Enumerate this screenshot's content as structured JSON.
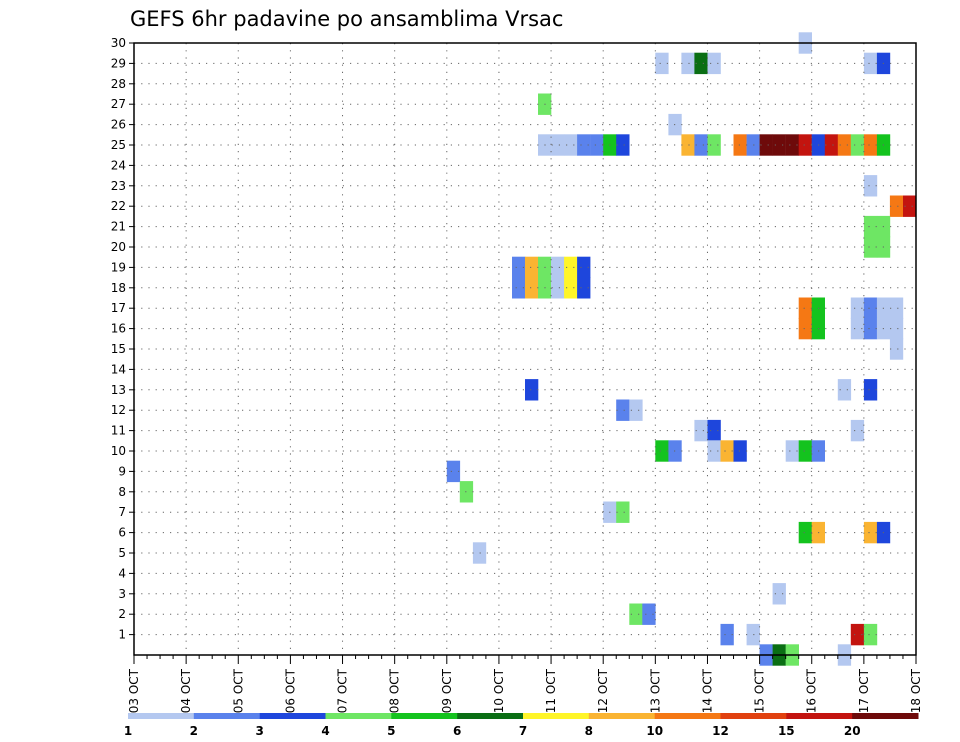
{
  "chart_data": {
    "type": "heatmap",
    "title": "GEFS 6hr padavine po ansamblima Vrsac",
    "x_tick_labels": [
      "03 OCT",
      "04 OCT",
      "05 OCT",
      "06 OCT",
      "07 OCT",
      "08 OCT",
      "09 OCT",
      "10 OCT",
      "11 OCT",
      "12 OCT",
      "13 OCT",
      "14 OCT",
      "15 OCT",
      "16 OCT",
      "17 OCT",
      "18 OCT"
    ],
    "y_tick_labels": [
      "1",
      "2",
      "3",
      "4",
      "5",
      "6",
      "7",
      "8",
      "9",
      "10",
      "11",
      "12",
      "13",
      "14",
      "15",
      "16",
      "17",
      "18",
      "19",
      "20",
      "21",
      "22",
      "23",
      "24",
      "25",
      "26",
      "27",
      "28",
      "29",
      "30"
    ],
    "x_unit": "6-hour step from 03 OCT 00z",
    "xlim": [
      0,
      60
    ],
    "ylim": [
      0,
      30
    ],
    "grid": true,
    "colorbar": {
      "labels": [
        "1",
        "2",
        "3",
        "4",
        "5",
        "6",
        "7",
        "8",
        "10",
        "12",
        "15",
        "20"
      ],
      "colors": [
        "#b4c8f0",
        "#5a82ec",
        "#1e46dc",
        "#6ee664",
        "#14c31e",
        "#0a6e14",
        "#fff528",
        "#fab432",
        "#f57814",
        "#e1410f",
        "#c3140f",
        "#6e0a0a"
      ]
    },
    "cells": [
      {
        "member": 30,
        "t": 51,
        "v": 1
      },
      {
        "member": 29,
        "t": 40,
        "v": 1
      },
      {
        "member": 29,
        "t": 42,
        "v": 1
      },
      {
        "member": 29,
        "t": 43,
        "v": 6
      },
      {
        "member": 29,
        "t": 44,
        "v": 1
      },
      {
        "member": 29,
        "t": 56,
        "v": 1
      },
      {
        "member": 29,
        "t": 57,
        "v": 3
      },
      {
        "member": 27,
        "t": 31,
        "v": 4
      },
      {
        "member": 26,
        "t": 41,
        "v": 1
      },
      {
        "member": 25,
        "t": 31,
        "v": 1
      },
      {
        "member": 25,
        "t": 32,
        "v": 1
      },
      {
        "member": 25,
        "t": 33,
        "v": 1
      },
      {
        "member": 25,
        "t": 34,
        "v": 2
      },
      {
        "member": 25,
        "t": 35,
        "v": 2
      },
      {
        "member": 25,
        "t": 36,
        "v": 5
      },
      {
        "member": 25,
        "t": 37,
        "v": 3
      },
      {
        "member": 25,
        "t": 42,
        "v": 8
      },
      {
        "member": 25,
        "t": 43,
        "v": 2
      },
      {
        "member": 25,
        "t": 44,
        "v": 4
      },
      {
        "member": 25,
        "t": 46,
        "v": 10
      },
      {
        "member": 25,
        "t": 47,
        "v": 2
      },
      {
        "member": 25,
        "t": 48,
        "v": 20
      },
      {
        "member": 25,
        "t": 49,
        "v": 20
      },
      {
        "member": 25,
        "t": 50,
        "v": 20
      },
      {
        "member": 25,
        "t": 51,
        "v": 15
      },
      {
        "member": 25,
        "t": 52,
        "v": 3
      },
      {
        "member": 25,
        "t": 53,
        "v": 15
      },
      {
        "member": 25,
        "t": 54,
        "v": 10
      },
      {
        "member": 25,
        "t": 55,
        "v": 4
      },
      {
        "member": 25,
        "t": 56,
        "v": 10
      },
      {
        "member": 25,
        "t": 57,
        "v": 5
      },
      {
        "member": 23,
        "t": 56,
        "v": 1
      },
      {
        "member": 22,
        "t": 58,
        "v": 10
      },
      {
        "member": 22,
        "t": 59,
        "v": 15
      },
      {
        "member": 21,
        "t": 56,
        "v": 4
      },
      {
        "member": 21,
        "t": 57,
        "v": 4
      },
      {
        "member": 20,
        "t": 56,
        "v": 4
      },
      {
        "member": 20,
        "t": 57,
        "v": 4
      },
      {
        "member": 19,
        "t": 29,
        "v": 2
      },
      {
        "member": 19,
        "t": 30,
        "v": 8
      },
      {
        "member": 19,
        "t": 31,
        "v": 4
      },
      {
        "member": 19,
        "t": 32,
        "v": 1
      },
      {
        "member": 19,
        "t": 33,
        "v": 7
      },
      {
        "member": 19,
        "t": 34,
        "v": 3
      },
      {
        "member": 18,
        "t": 29,
        "v": 2
      },
      {
        "member": 18,
        "t": 30,
        "v": 8
      },
      {
        "member": 18,
        "t": 31,
        "v": 4
      },
      {
        "member": 18,
        "t": 32,
        "v": 1
      },
      {
        "member": 18,
        "t": 33,
        "v": 7
      },
      {
        "member": 18,
        "t": 34,
        "v": 3
      },
      {
        "member": 17,
        "t": 51,
        "v": 10
      },
      {
        "member": 17,
        "t": 52,
        "v": 5
      },
      {
        "member": 17,
        "t": 55,
        "v": 1
      },
      {
        "member": 17,
        "t": 56,
        "v": 2
      },
      {
        "member": 17,
        "t": 57,
        "v": 1
      },
      {
        "member": 17,
        "t": 58,
        "v": 1
      },
      {
        "member": 16,
        "t": 51,
        "v": 10
      },
      {
        "member": 16,
        "t": 52,
        "v": 5
      },
      {
        "member": 16,
        "t": 55,
        "v": 1
      },
      {
        "member": 16,
        "t": 56,
        "v": 2
      },
      {
        "member": 16,
        "t": 57,
        "v": 1
      },
      {
        "member": 16,
        "t": 58,
        "v": 1
      },
      {
        "member": 15,
        "t": 58,
        "v": 1
      },
      {
        "member": 13,
        "t": 30,
        "v": 3
      },
      {
        "member": 13,
        "t": 54,
        "v": 1
      },
      {
        "member": 13,
        "t": 56,
        "v": 3
      },
      {
        "member": 12,
        "t": 37,
        "v": 2
      },
      {
        "member": 12,
        "t": 38,
        "v": 1
      },
      {
        "member": 11,
        "t": 43,
        "v": 1
      },
      {
        "member": 11,
        "t": 44,
        "v": 3
      },
      {
        "member": 11,
        "t": 55,
        "v": 1
      },
      {
        "member": 10,
        "t": 40,
        "v": 5
      },
      {
        "member": 10,
        "t": 41,
        "v": 2
      },
      {
        "member": 10,
        "t": 44,
        "v": 1
      },
      {
        "member": 10,
        "t": 45,
        "v": 8
      },
      {
        "member": 10,
        "t": 46,
        "v": 3
      },
      {
        "member": 10,
        "t": 50,
        "v": 1
      },
      {
        "member": 10,
        "t": 51,
        "v": 5
      },
      {
        "member": 10,
        "t": 52,
        "v": 2
      },
      {
        "member": 9,
        "t": 24,
        "v": 2
      },
      {
        "member": 8,
        "t": 25,
        "v": 4
      },
      {
        "member": 7,
        "t": 36,
        "v": 1
      },
      {
        "member": 7,
        "t": 37,
        "v": 4
      },
      {
        "member": 6,
        "t": 51,
        "v": 5
      },
      {
        "member": 6,
        "t": 52,
        "v": 8
      },
      {
        "member": 6,
        "t": 56,
        "v": 8
      },
      {
        "member": 6,
        "t": 57,
        "v": 3
      },
      {
        "member": 5,
        "t": 26,
        "v": 1
      },
      {
        "member": 3,
        "t": 49,
        "v": 1
      },
      {
        "member": 2,
        "t": 38,
        "v": 4
      },
      {
        "member": 2,
        "t": 39,
        "v": 2
      },
      {
        "member": 1,
        "t": 45,
        "v": 2
      },
      {
        "member": 1,
        "t": 47,
        "v": 1
      },
      {
        "member": 1,
        "t": 55,
        "v": 15
      },
      {
        "member": 1,
        "t": 56,
        "v": 4
      },
      {
        "member": 0,
        "t": 48,
        "v": 2
      },
      {
        "member": 0,
        "t": 49,
        "v": 6
      },
      {
        "member": 0,
        "t": 50,
        "v": 4
      },
      {
        "member": 0,
        "t": 54,
        "v": 1
      }
    ]
  }
}
